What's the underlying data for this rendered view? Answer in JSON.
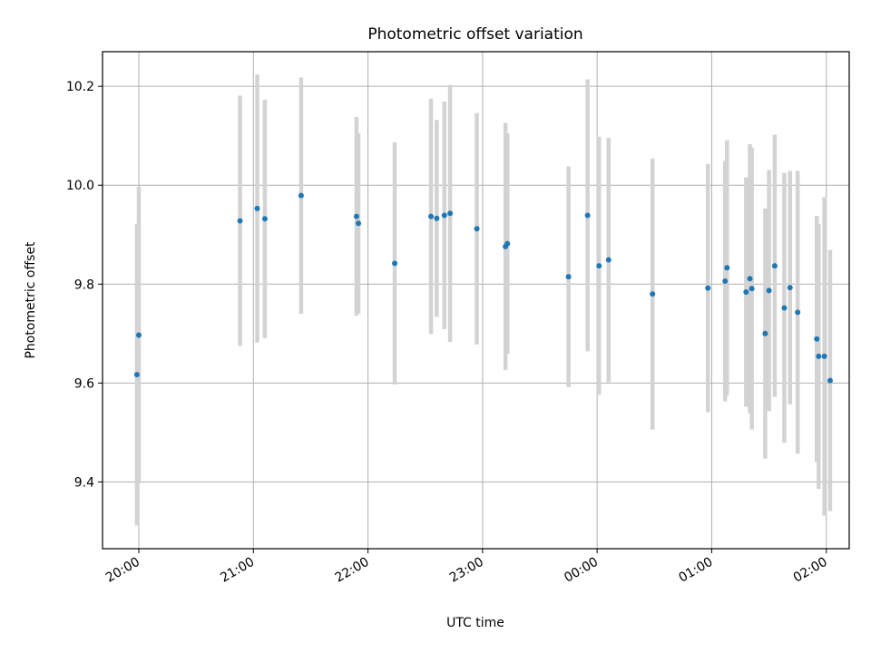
{
  "chart_data": {
    "type": "scatter",
    "title": "Photometric offset variation",
    "xlabel": "UTC time",
    "ylabel": "Photometric offset",
    "x_axis": {
      "type": "time",
      "range": [
        "19:41",
        "02:12"
      ]
    },
    "ylim": [
      9.265,
      10.27
    ],
    "x_ticks": [
      "20:00",
      "21:00",
      "22:00",
      "23:00",
      "00:00",
      "01:00",
      "02:00"
    ],
    "y_ticks": [
      "9.4",
      "9.6",
      "9.8",
      "10.0",
      "10.2"
    ],
    "grid": true,
    "colors": {
      "marker": "#1f77b4",
      "errorbar": "#d3d3d3",
      "grid": "#b0b0b0"
    },
    "points": [
      {
        "t": "19:59",
        "y": 9.617,
        "yerr": 0.305
      },
      {
        "t": "20:00",
        "y": 9.697,
        "yerr": 0.3
      },
      {
        "t": "20:53",
        "y": 9.928,
        "yerr": 0.253
      },
      {
        "t": "21:02",
        "y": 9.953,
        "yerr": 0.271
      },
      {
        "t": "21:06",
        "y": 9.932,
        "yerr": 0.241
      },
      {
        "t": "21:25",
        "y": 9.979,
        "yerr": 0.239
      },
      {
        "t": "21:54",
        "y": 9.937,
        "yerr": 0.201
      },
      {
        "t": "21:55",
        "y": 9.923,
        "yerr": 0.182
      },
      {
        "t": "22:14",
        "y": 9.842,
        "yerr": 0.245
      },
      {
        "t": "22:33",
        "y": 9.937,
        "yerr": 0.238
      },
      {
        "t": "22:36",
        "y": 9.933,
        "yerr": 0.199
      },
      {
        "t": "22:40",
        "y": 9.939,
        "yerr": 0.23
      },
      {
        "t": "22:43",
        "y": 9.943,
        "yerr": 0.26
      },
      {
        "t": "22:57",
        "y": 9.912,
        "yerr": 0.234
      },
      {
        "t": "23:12",
        "y": 9.876,
        "yerr": 0.25
      },
      {
        "t": "23:13",
        "y": 9.882,
        "yerr": 0.223
      },
      {
        "t": "23:45",
        "y": 9.815,
        "yerr": 0.223
      },
      {
        "t": "23:55",
        "y": 9.939,
        "yerr": 0.275
      },
      {
        "t": "00:01",
        "y": 9.837,
        "yerr": 0.261
      },
      {
        "t": "00:06",
        "y": 9.849,
        "yerr": 0.247
      },
      {
        "t": "00:29",
        "y": 9.78,
        "yerr": 0.274
      },
      {
        "t": "00:58",
        "y": 9.792,
        "yerr": 0.251
      },
      {
        "t": "01:07",
        "y": 9.806,
        "yerr": 0.243
      },
      {
        "t": "01:08",
        "y": 9.833,
        "yerr": 0.258
      },
      {
        "t": "01:18",
        "y": 9.784,
        "yerr": 0.232
      },
      {
        "t": "01:20",
        "y": 9.811,
        "yerr": 0.272
      },
      {
        "t": "01:21",
        "y": 9.791,
        "yerr": 0.285
      },
      {
        "t": "01:28",
        "y": 9.7,
        "yerr": 0.253
      },
      {
        "t": "01:30",
        "y": 9.787,
        "yerr": 0.244
      },
      {
        "t": "01:33",
        "y": 9.837,
        "yerr": 0.265
      },
      {
        "t": "01:38",
        "y": 9.752,
        "yerr": 0.273
      },
      {
        "t": "01:41",
        "y": 9.793,
        "yerr": 0.236
      },
      {
        "t": "01:45",
        "y": 9.743,
        "yerr": 0.286
      },
      {
        "t": "01:55",
        "y": 9.689,
        "yerr": 0.249
      },
      {
        "t": "01:56",
        "y": 9.654,
        "yerr": 0.268
      },
      {
        "t": "01:59",
        "y": 9.654,
        "yerr": 0.322
      },
      {
        "t": "02:02",
        "y": 9.605,
        "yerr": 0.264
      }
    ]
  }
}
